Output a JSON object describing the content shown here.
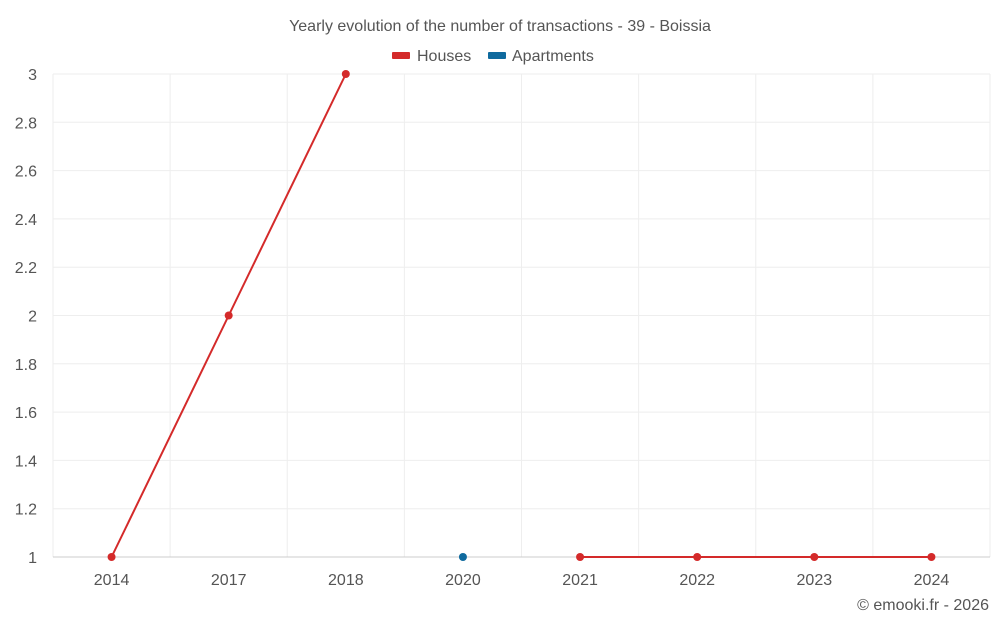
{
  "chart_data": {
    "type": "line",
    "title": "Yearly evolution of the number of transactions - 39 - Boissia",
    "categories": [
      "2014",
      "2017",
      "2018",
      "2020",
      "2021",
      "2022",
      "2023",
      "2024"
    ],
    "series": [
      {
        "name": "Houses",
        "color": "#d42a2a",
        "values": [
          1,
          2,
          3,
          null,
          1,
          1,
          1,
          1
        ]
      },
      {
        "name": "Apartments",
        "color": "#0f6a9e",
        "values": [
          null,
          null,
          null,
          1,
          null,
          null,
          null,
          null
        ]
      }
    ],
    "ylim": [
      1,
      3
    ],
    "yticks": [
      "1",
      "1.2",
      "1.4",
      "1.6",
      "1.8",
      "2",
      "2.2",
      "2.4",
      "2.6",
      "2.8",
      "3"
    ],
    "xlabel": "",
    "ylabel": "",
    "legend": "top-center",
    "grid": true
  },
  "credit": "© emooki.fr - 2026"
}
